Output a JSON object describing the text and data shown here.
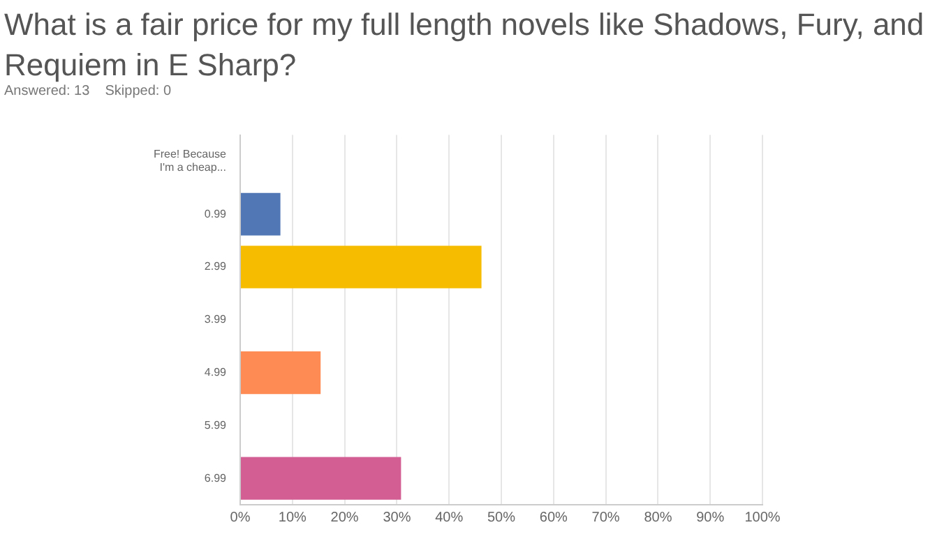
{
  "chart_data": {
    "type": "bar",
    "orientation": "horizontal",
    "title": "What is a fair price for my full length novels like Shadows, Fury, and Requiem in E Sharp?",
    "subtitle": "Answered: 13    Skipped: 0",
    "categories": [
      "Free! Because I'm a cheap...",
      "0.99",
      "2.99",
      "3.99",
      "4.99",
      "5.99",
      "6.99"
    ],
    "values": [
      0,
      7.7,
      46.2,
      0,
      15.4,
      0,
      30.8
    ],
    "colors": [
      "#5178b5",
      "#5178b5",
      "#f6bd00",
      "#5178b5",
      "#fe8b53",
      "#5178b5",
      "#d35e93"
    ],
    "xlim": [
      0,
      100
    ],
    "xticks": [
      {
        "value": 0,
        "label": "0%"
      },
      {
        "value": 10,
        "label": "10%"
      },
      {
        "value": 20,
        "label": "20%"
      },
      {
        "value": 30,
        "label": "30%"
      },
      {
        "value": 40,
        "label": "40%"
      },
      {
        "value": 50,
        "label": "50%"
      },
      {
        "value": 60,
        "label": "60%"
      },
      {
        "value": 70,
        "label": "70%"
      },
      {
        "value": 80,
        "label": "80%"
      },
      {
        "value": 90,
        "label": "90%"
      },
      {
        "value": 100,
        "label": "100%"
      }
    ],
    "grid": "x"
  }
}
